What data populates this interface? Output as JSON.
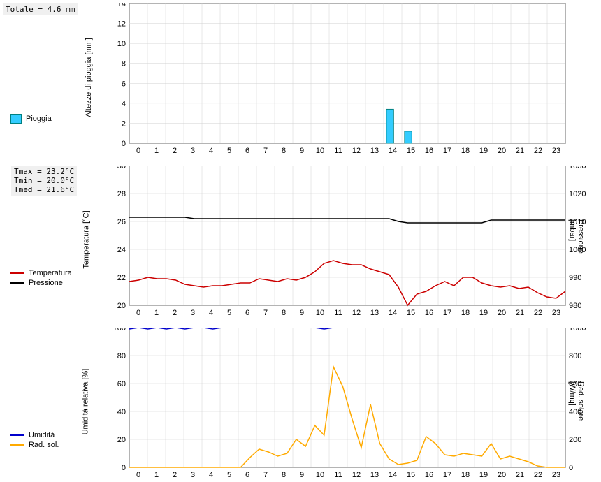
{
  "summary": {
    "totale_label": "Totale = 4.6 mm",
    "tmax": "Tmax = 23.2°C",
    "tmin": "Tmin = 20.0°C",
    "tmed": "Tmed = 21.6°C"
  },
  "legend": {
    "pioggia": "Pioggia",
    "temperatura": "Temperatura",
    "pressione": "Pressione",
    "umidita": "Umidità",
    "radsol": "Rad. sol."
  },
  "colors": {
    "pioggia_fill": "#33ccff",
    "pioggia_stroke": "#008080",
    "temperatura": "#cc0000",
    "pressione": "#000000",
    "umidita": "#0000cc",
    "radsol": "#ffaa00",
    "grid": "#d0d0d0",
    "grid_dark": "#a0a0a0",
    "axis": "#000000",
    "background": "#ffffff"
  },
  "charts": {
    "rain": {
      "type": "bar",
      "x_categories": [
        0,
        1,
        2,
        3,
        4,
        5,
        6,
        7,
        8,
        9,
        10,
        11,
        12,
        13,
        14,
        15,
        16,
        17,
        18,
        19,
        20,
        21,
        22,
        23
      ],
      "values": [
        0,
        0,
        0,
        0,
        0,
        0,
        0,
        0,
        0,
        0,
        0,
        0,
        0,
        0,
        3.4,
        1.2,
        0,
        0,
        0,
        0,
        0,
        0,
        0,
        0
      ],
      "ylabel": "Altezze di pioggia [mm]",
      "ylim": [
        0,
        14
      ],
      "ytick_step": 2,
      "bar_colors": "#33ccff",
      "bar_stroke": "#008080"
    },
    "temp_press": {
      "type": "line",
      "ylabel_left": "Temperatura [°C]",
      "ylabel_right": "Pressione [mbar]",
      "ylim_left": [
        20,
        30
      ],
      "ytick_left": 2,
      "ylim_right": [
        980,
        1030
      ],
      "ytick_right": 10,
      "temperatura": [
        21.7,
        21.8,
        22.0,
        21.9,
        21.9,
        21.8,
        21.5,
        21.4,
        21.3,
        21.4,
        21.4,
        21.5,
        21.6,
        21.6,
        21.9,
        21.8,
        21.7,
        21.9,
        21.8,
        22.0,
        22.4,
        23.0,
        23.2,
        23.0,
        22.9,
        22.9,
        22.6,
        22.4,
        22.2,
        21.3,
        20.0,
        20.8,
        21.0,
        21.4,
        21.7,
        21.4,
        22.0,
        22.0,
        21.6,
        21.4,
        21.3,
        21.4,
        21.2,
        21.3,
        20.9,
        20.6,
        20.5,
        21.0
      ],
      "pressione": [
        1011.5,
        1011.5,
        1011.5,
        1011.5,
        1011.5,
        1011.5,
        1011.5,
        1011,
        1011,
        1011,
        1011,
        1011,
        1011,
        1011,
        1011,
        1011,
        1011,
        1011,
        1011,
        1011,
        1011,
        1011,
        1011,
        1011,
        1011,
        1011,
        1011,
        1011,
        1011,
        1010,
        1009.5,
        1009.5,
        1009.5,
        1009.5,
        1009.5,
        1009.5,
        1009.5,
        1009.5,
        1009.5,
        1010.5,
        1010.5,
        1010.5,
        1010.5,
        1010.5,
        1010.5,
        1010.5,
        1010.5,
        1010.5
      ]
    },
    "humid_rad": {
      "type": "line",
      "ylabel_left": "Umidità relativa [%]",
      "ylabel_right": "Rad. solare [W/mq]",
      "ylim_left": [
        0,
        100
      ],
      "ytick_left": 20,
      "ylim_right": [
        0,
        1000
      ],
      "ytick_right": 200,
      "umidita": [
        99,
        100,
        99,
        100,
        99,
        100,
        99,
        100,
        100,
        99,
        100,
        100,
        100,
        100,
        100,
        100,
        100,
        100,
        100,
        100,
        100,
        99,
        100,
        100,
        100,
        100,
        100,
        100,
        100,
        100,
        100,
        100,
        100,
        100,
        100,
        100,
        100,
        100,
        100,
        100,
        100,
        100,
        100,
        100,
        100,
        100,
        100,
        100
      ],
      "radsol": [
        0,
        0,
        0,
        0,
        0,
        0,
        0,
        0,
        0,
        0,
        0,
        0,
        0,
        70,
        130,
        110,
        80,
        100,
        200,
        150,
        300,
        230,
        720,
        580,
        350,
        140,
        450,
        170,
        60,
        20,
        30,
        50,
        220,
        170,
        90,
        80,
        100,
        90,
        80,
        170,
        60,
        80,
        60,
        40,
        10,
        0,
        0,
        0
      ]
    }
  }
}
